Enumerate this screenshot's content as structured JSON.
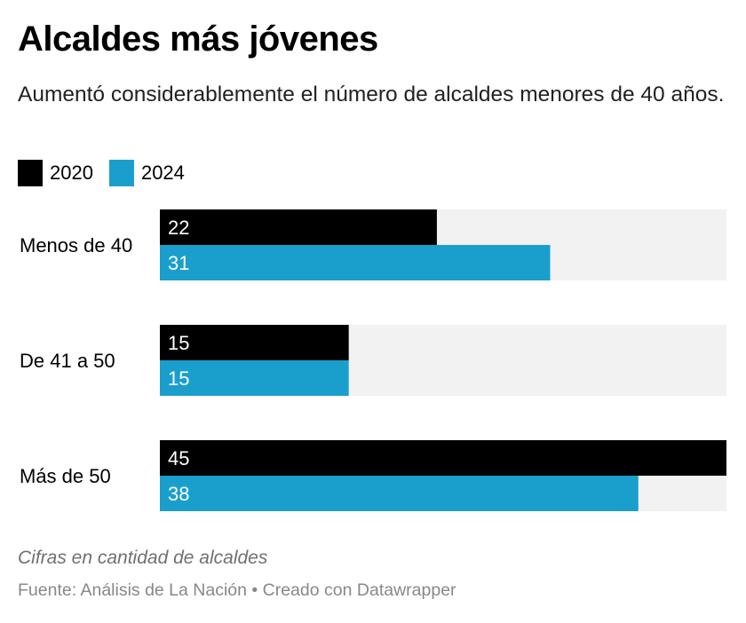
{
  "header": {
    "title": "Alcaldes más jóvenes",
    "subtitle": "Aumentó considerablemente el número de alcaldes menores de 40 años."
  },
  "legend": [
    {
      "label": "2020",
      "color": "#000000"
    },
    {
      "label": "2024",
      "color": "#1a9fcd"
    }
  ],
  "footer": {
    "notes": "Cifras en cantidad de alcaldes",
    "source": "Fuente: Análisis de La Nación • Creado con Datawrapper"
  },
  "chart_data": {
    "type": "bar",
    "orientation": "horizontal",
    "grouped": true,
    "title": "Alcaldes más jóvenes",
    "subtitle": "Aumentó considerablemente el número de alcaldes menores de 40 años.",
    "categories": [
      "Menos de 40",
      "De 41 a 50",
      "Más de 50"
    ],
    "series": [
      {
        "name": "2020",
        "color": "#000000",
        "values": [
          22,
          15,
          45
        ]
      },
      {
        "name": "2024",
        "color": "#1a9fcd",
        "values": [
          31,
          15,
          38
        ]
      }
    ],
    "xlim": [
      0,
      45
    ],
    "background_track_color": "#f2f2f2",
    "value_labels": "inside-left",
    "grid": false,
    "legend": "top-left",
    "xlabel": "",
    "ylabel": "",
    "notes": "Cifras en cantidad de alcaldes",
    "source": "Fuente: Análisis de La Nación • Creado con Datawrapper"
  }
}
